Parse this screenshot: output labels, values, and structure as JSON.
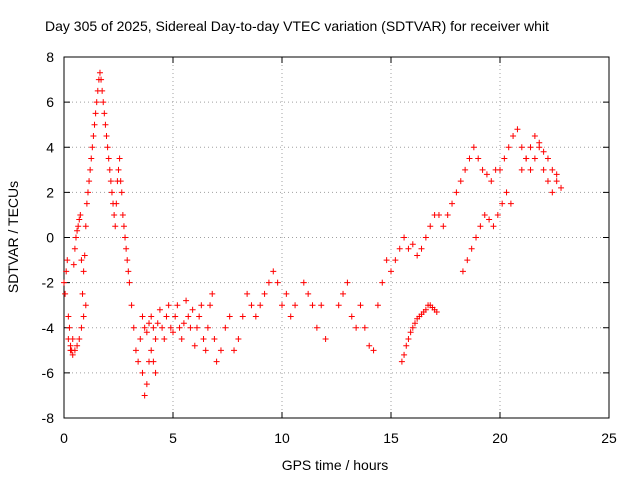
{
  "chart_data": {
    "type": "scatter",
    "title": "Day 305 of 2025, Sidereal Day-to-day VTEC variation (SDTVAR) for receiver whit",
    "xlabel": "GPS time / hours",
    "ylabel": "SDTVAR / TECUs",
    "xlim": [
      0,
      25
    ],
    "ylim": [
      -8,
      8
    ],
    "xticks": [
      0,
      5,
      10,
      15,
      20,
      25
    ],
    "yticks": [
      -8,
      -6,
      -4,
      -2,
      0,
      2,
      4,
      6,
      8
    ],
    "grid": true,
    "marker": "plus",
    "color": "#ff0000",
    "series": [
      {
        "name": "SDTVAR",
        "x": [
          0.0,
          0.05,
          0.1,
          0.15,
          0.2,
          0.25,
          0.3,
          0.35,
          0.4,
          0.45,
          0.5,
          0.55,
          0.6,
          0.65,
          0.7,
          0.75,
          0.8,
          0.85,
          0.9,
          0.95,
          1.0,
          1.05,
          1.1,
          1.15,
          1.2,
          1.25,
          1.3,
          1.35,
          1.4,
          1.45,
          1.5,
          1.55,
          1.6,
          1.65,
          1.7,
          1.75,
          1.8,
          1.85,
          1.9,
          1.95,
          2.0,
          2.05,
          2.1,
          2.15,
          2.2,
          2.25,
          2.3,
          2.35,
          2.4,
          2.45,
          2.5,
          2.55,
          2.6,
          2.65,
          2.7,
          2.75,
          2.8,
          2.85,
          2.9,
          2.95,
          3.0,
          3.1,
          3.2,
          3.3,
          3.4,
          3.5,
          3.6,
          3.7,
          3.8,
          3.9,
          4.0,
          4.1,
          4.2,
          4.3,
          4.4,
          4.5,
          4.6,
          4.7,
          4.8,
          4.9,
          5.0,
          5.1,
          5.2,
          5.3,
          5.4,
          5.5,
          5.6,
          5.7,
          5.8,
          5.9,
          6.0,
          6.1,
          6.2,
          6.3,
          6.4,
          6.5,
          6.6,
          6.7,
          6.8,
          6.9,
          7.0,
          7.2,
          7.4,
          7.6,
          7.8,
          8.0,
          8.2,
          8.4,
          8.6,
          8.8,
          9.0,
          9.2,
          9.4,
          9.6,
          9.8,
          10.0,
          10.2,
          10.4,
          10.6,
          11.0,
          11.2,
          11.4,
          11.6,
          11.8,
          12.0,
          12.6,
          12.8,
          13.0,
          13.2,
          13.4,
          13.6,
          13.8,
          14.0,
          14.2,
          14.4,
          14.6,
          14.8,
          15.0,
          15.2,
          15.4,
          15.6,
          15.8,
          16.0,
          16.2,
          16.4,
          16.6,
          16.8,
          17.0,
          17.2,
          17.4,
          17.6,
          17.8,
          18.0,
          18.2,
          18.4,
          18.6,
          18.8,
          19.0,
          19.2,
          19.4,
          19.6,
          19.8,
          20.0,
          20.2,
          20.4,
          20.6,
          20.8,
          21.0,
          21.2,
          21.4,
          21.6,
          21.8,
          22.0,
          22.2,
          22.4,
          22.6,
          22.8,
          15.5,
          15.6,
          15.7,
          15.8,
          15.9,
          16.0,
          16.1,
          16.2,
          16.3,
          16.4,
          16.5,
          16.6,
          16.7,
          16.8,
          16.9,
          17.0,
          17.1,
          18.3,
          18.5,
          18.7,
          18.9,
          19.1,
          19.3,
          19.5,
          19.7,
          19.9,
          20.1,
          20.3,
          20.5,
          0.2,
          0.3,
          0.4,
          0.5,
          0.6,
          0.7,
          0.8,
          0.9,
          1.0,
          3.6,
          3.7,
          3.8,
          3.9,
          4.0,
          4.1,
          4.2,
          21.0,
          21.2,
          21.4,
          21.6,
          21.8,
          22.0,
          22.2,
          22.4,
          22.6
        ],
        "values": [
          -2.0,
          -2.5,
          -1.5,
          -1.0,
          -3.5,
          -4.0,
          -4.8,
          -5.0,
          -4.5,
          -1.2,
          -0.5,
          0.0,
          0.3,
          0.5,
          0.8,
          1.0,
          -1.0,
          -2.5,
          -1.5,
          -0.8,
          0.5,
          1.5,
          2.0,
          2.5,
          3.0,
          3.5,
          4.0,
          4.5,
          5.0,
          5.5,
          6.0,
          6.5,
          7.0,
          7.3,
          7.0,
          6.5,
          6.0,
          5.5,
          5.0,
          4.5,
          4.0,
          3.5,
          3.0,
          2.5,
          2.0,
          1.5,
          1.0,
          0.5,
          1.5,
          2.5,
          3.0,
          3.5,
          2.5,
          2.0,
          1.0,
          0.5,
          0.0,
          -0.5,
          -1.0,
          -1.5,
          -2.0,
          -3.0,
          -4.0,
          -5.0,
          -5.5,
          -4.5,
          -3.5,
          -4.0,
          -4.2,
          -3.8,
          -3.5,
          -4.0,
          -4.5,
          -3.8,
          -3.2,
          -4.0,
          -4.5,
          -3.5,
          -3.0,
          -4.0,
          -4.2,
          -3.5,
          -3.0,
          -4.0,
          -4.5,
          -3.8,
          -2.8,
          -3.5,
          -4.0,
          -3.2,
          -4.8,
          -4.0,
          -3.5,
          -3.0,
          -4.5,
          -5.0,
          -4.0,
          -3.0,
          -2.5,
          -4.5,
          -5.5,
          -5.0,
          -4.0,
          -3.5,
          -5.0,
          -4.5,
          -3.5,
          -2.5,
          -3.0,
          -3.5,
          -3.0,
          -2.5,
          -2.0,
          -1.5,
          -2.0,
          -3.0,
          -2.5,
          -3.5,
          -3.0,
          -2.0,
          -2.5,
          -3.0,
          -4.0,
          -3.0,
          -4.5,
          -3.0,
          -2.5,
          -2.0,
          -3.5,
          -4.0,
          -3.0,
          -4.0,
          -4.8,
          -5.0,
          -3.0,
          -2.0,
          -1.0,
          -1.5,
          -1.0,
          -0.5,
          0.0,
          -0.5,
          -0.3,
          -0.8,
          -0.5,
          0.0,
          0.5,
          1.0,
          1.0,
          0.5,
          1.0,
          1.5,
          2.0,
          2.5,
          3.0,
          3.5,
          4.0,
          3.5,
          3.0,
          2.8,
          2.5,
          3.0,
          3.0,
          3.5,
          4.0,
          4.5,
          4.8,
          4.0,
          3.5,
          3.0,
          3.5,
          4.0,
          3.0,
          2.5,
          2.0,
          2.5,
          2.2,
          -5.5,
          -5.2,
          -4.8,
          -4.5,
          -4.2,
          -4.0,
          -3.8,
          -3.6,
          -3.5,
          -3.4,
          -3.3,
          -3.2,
          -3.0,
          -3.0,
          -3.1,
          -3.2,
          -3.3,
          -1.5,
          -1.0,
          -0.5,
          0.0,
          0.5,
          1.0,
          0.8,
          0.5,
          1.0,
          1.5,
          2.0,
          1.5,
          -4.5,
          -5.0,
          -5.2,
          -5.0,
          -4.8,
          -4.5,
          -4.0,
          -3.5,
          -3.0,
          -6.0,
          -7.0,
          -6.5,
          -5.5,
          -5.0,
          -5.5,
          -6.0,
          3.0,
          3.5,
          4.0,
          4.5,
          4.2,
          3.8,
          3.5,
          3.0,
          2.8
        ]
      }
    ]
  }
}
